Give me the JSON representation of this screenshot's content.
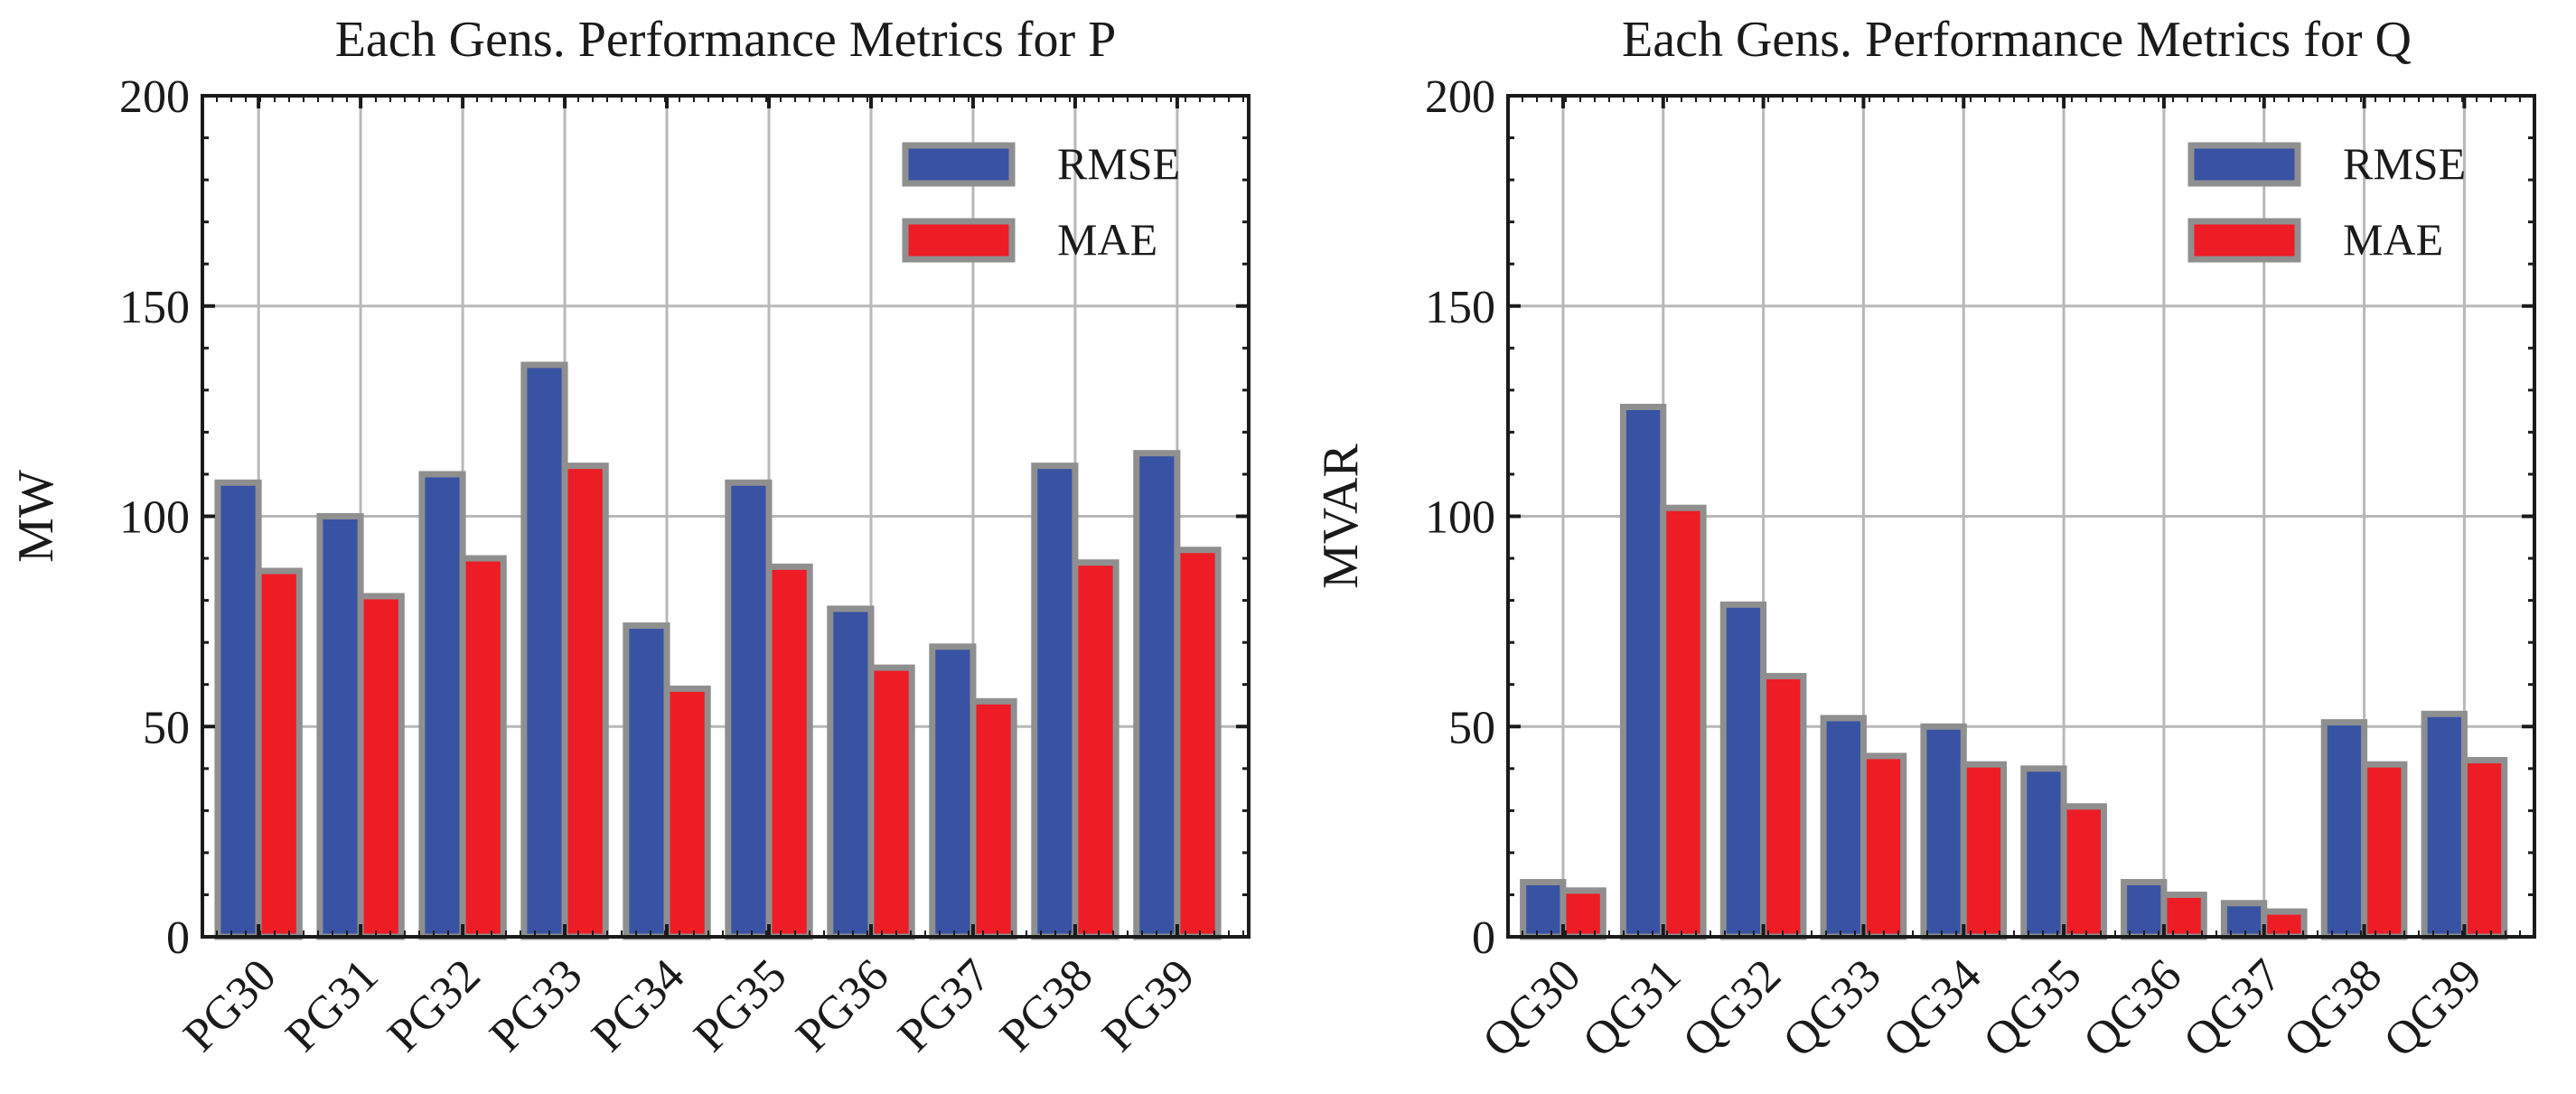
{
  "chart_data": [
    {
      "type": "bar",
      "title": "Each Gens. Performance Metrics for P",
      "xlabel": "",
      "ylabel": "MW",
      "ylim": [
        0,
        200
      ],
      "yticks": [
        0,
        50,
        100,
        150,
        200
      ],
      "categories": [
        "PG30",
        "PG31",
        "PG32",
        "PG33",
        "PG34",
        "PG35",
        "PG36",
        "PG37",
        "PG38",
        "PG39"
      ],
      "series": [
        {
          "name": "RMSE",
          "color": "#3853a4",
          "values": [
            108,
            100,
            110,
            136,
            74,
            108,
            78,
            69,
            112,
            115
          ]
        },
        {
          "name": "MAE",
          "color": "#ee1c24",
          "values": [
            87,
            81,
            90,
            112,
            59,
            88,
            64,
            56,
            89,
            92
          ]
        }
      ],
      "legend": "top-right",
      "grid": true
    },
    {
      "type": "bar",
      "title": "Each Gens. Performance Metrics for Q",
      "xlabel": "",
      "ylabel": "MVAR",
      "ylim": [
        0,
        200
      ],
      "yticks": [
        0,
        50,
        100,
        150,
        200
      ],
      "categories": [
        "QG30",
        "QG31",
        "QG32",
        "QG33",
        "QG34",
        "QG35",
        "QG36",
        "QG37",
        "QG38",
        "QG39"
      ],
      "series": [
        {
          "name": "RMSE",
          "color": "#3853a4",
          "values": [
            13,
            126,
            79,
            52,
            50,
            40,
            13,
            8,
            51,
            53
          ]
        },
        {
          "name": "MAE",
          "color": "#ee1c24",
          "values": [
            11,
            102,
            62,
            43,
            41,
            31,
            10,
            6,
            41,
            42
          ]
        }
      ],
      "legend": "top-right",
      "grid": true
    }
  ]
}
